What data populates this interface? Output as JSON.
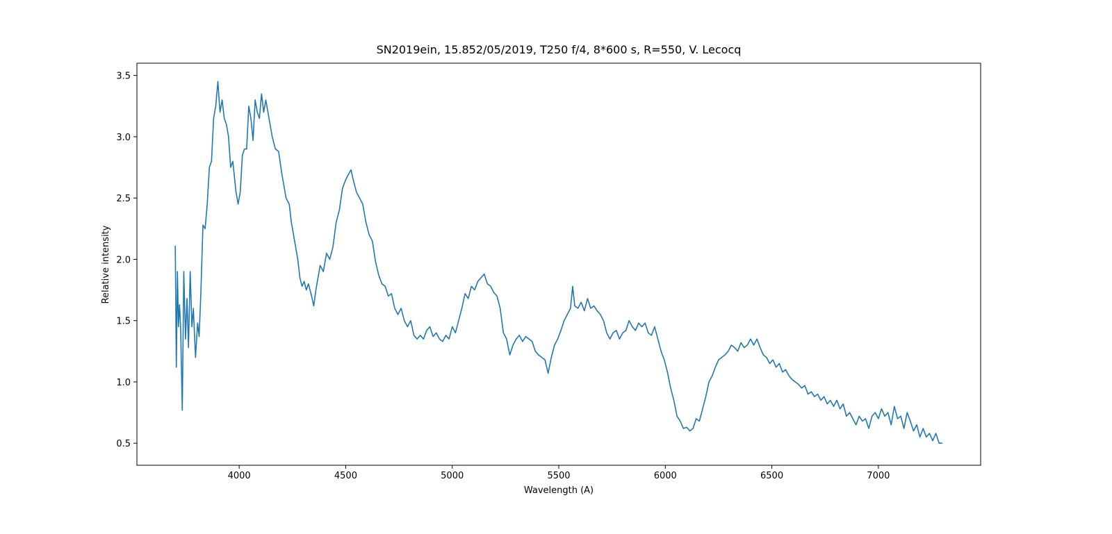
{
  "chart_data": {
    "type": "line",
    "title": "SN2019ein, 15.852/05/2019, T250 f/4, 8*600 s, R=550, V. Lecocq",
    "x_label": "Wavelength (A)",
    "y_label": "Relative intensity",
    "color": "#1f77b4",
    "xlim": [
      3520,
      7480
    ],
    "ylim": [
      0.32,
      3.6
    ],
    "xticks": [
      4000,
      4500,
      5000,
      5500,
      6000,
      6500,
      7000
    ],
    "yticks": [
      0.5,
      {
        "value": 1,
        "label": "1.0"
      },
      1.5,
      {
        "value": 2,
        "label": "2.0"
      },
      2.5,
      {
        "value": 3,
        "label": "3.0"
      },
      3.5
    ],
    "grid": false,
    "x": [
      3700,
      3705,
      3710,
      3715,
      3720,
      3725,
      3733,
      3740,
      3748,
      3755,
      3762,
      3770,
      3778,
      3785,
      3795,
      3805,
      3812,
      3820,
      3830,
      3840,
      3850,
      3860,
      3870,
      3880,
      3890,
      3900,
      3910,
      3920,
      3930,
      3940,
      3950,
      3960,
      3970,
      3985,
      3995,
      4005,
      4015,
      4025,
      4035,
      4045,
      4055,
      4065,
      4075,
      4085,
      4095,
      4105,
      4115,
      4125,
      4135,
      4145,
      4155,
      4170,
      4185,
      4200,
      4210,
      4220,
      4235,
      4245,
      4255,
      4265,
      4275,
      4285,
      4295,
      4305,
      4315,
      4325,
      4340,
      4350,
      4360,
      4370,
      4380,
      4395,
      4410,
      4425,
      4440,
      4455,
      4470,
      4485,
      4500,
      4515,
      4525,
      4535,
      4550,
      4565,
      4580,
      4595,
      4610,
      4625,
      4640,
      4655,
      4670,
      4685,
      4700,
      4715,
      4730,
      4745,
      4760,
      4775,
      4790,
      4805,
      4820,
      4835,
      4850,
      4865,
      4880,
      4895,
      4910,
      4925,
      4940,
      4955,
      4970,
      4985,
      5000,
      5015,
      5030,
      5045,
      5060,
      5075,
      5090,
      5105,
      5120,
      5135,
      5150,
      5165,
      5180,
      5195,
      5210,
      5225,
      5240,
      5255,
      5270,
      5285,
      5300,
      5315,
      5330,
      5345,
      5360,
      5375,
      5390,
      5405,
      5420,
      5435,
      5450,
      5465,
      5480,
      5495,
      5510,
      5525,
      5540,
      5555,
      5565,
      5575,
      5590,
      5605,
      5620,
      5635,
      5650,
      5665,
      5680,
      5695,
      5710,
      5725,
      5740,
      5755,
      5770,
      5785,
      5800,
      5815,
      5830,
      5845,
      5860,
      5875,
      5890,
      5905,
      5920,
      5935,
      5950,
      5965,
      5980,
      5995,
      6010,
      6025,
      6040,
      6055,
      6070,
      6085,
      6100,
      6115,
      6130,
      6145,
      6160,
      6175,
      6190,
      6205,
      6220,
      6235,
      6250,
      6265,
      6280,
      6295,
      6310,
      6325,
      6340,
      6355,
      6370,
      6385,
      6400,
      6415,
      6430,
      6445,
      6460,
      6475,
      6490,
      6505,
      6520,
      6535,
      6550,
      6565,
      6580,
      6595,
      6610,
      6625,
      6640,
      6655,
      6670,
      6685,
      6700,
      6715,
      6730,
      6745,
      6760,
      6775,
      6790,
      6805,
      6820,
      6835,
      6850,
      6865,
      6880,
      6895,
      6910,
      6925,
      6940,
      6955,
      6970,
      6985,
      7000,
      7015,
      7030,
      7045,
      7060,
      7075,
      7090,
      7105,
      7120,
      7135,
      7150,
      7165,
      7180,
      7195,
      7210,
      7225,
      7240,
      7255,
      7270,
      7285,
      7300
    ],
    "values": [
      2.11,
      1.12,
      1.9,
      1.45,
      1.63,
      1.45,
      0.77,
      1.9,
      1.35,
      1.68,
      1.28,
      1.9,
      1.45,
      1.6,
      1.2,
      1.48,
      1.37,
      1.72,
      2.28,
      2.25,
      2.45,
      2.75,
      2.8,
      3.15,
      3.25,
      3.45,
      3.2,
      3.3,
      3.15,
      3.1,
      3.0,
      2.75,
      2.8,
      2.55,
      2.45,
      2.55,
      2.85,
      2.9,
      2.9,
      3.25,
      3.15,
      2.97,
      3.3,
      3.2,
      3.15,
      3.35,
      3.2,
      3.3,
      3.2,
      3.1,
      3.0,
      2.9,
      2.88,
      2.7,
      2.6,
      2.5,
      2.45,
      2.3,
      2.2,
      2.1,
      2.0,
      1.85,
      1.78,
      1.82,
      1.75,
      1.8,
      1.7,
      1.62,
      1.75,
      1.85,
      1.95,
      1.9,
      2.05,
      2.0,
      2.1,
      2.3,
      2.4,
      2.58,
      2.65,
      2.7,
      2.73,
      2.65,
      2.55,
      2.5,
      2.45,
      2.3,
      2.2,
      2.15,
      1.98,
      1.87,
      1.8,
      1.78,
      1.7,
      1.72,
      1.6,
      1.55,
      1.6,
      1.5,
      1.45,
      1.5,
      1.38,
      1.35,
      1.38,
      1.35,
      1.42,
      1.45,
      1.37,
      1.4,
      1.35,
      1.33,
      1.38,
      1.35,
      1.45,
      1.4,
      1.5,
      1.6,
      1.72,
      1.68,
      1.78,
      1.75,
      1.82,
      1.85,
      1.88,
      1.8,
      1.78,
      1.73,
      1.7,
      1.6,
      1.4,
      1.35,
      1.22,
      1.3,
      1.35,
      1.38,
      1.33,
      1.37,
      1.35,
      1.33,
      1.25,
      1.22,
      1.2,
      1.18,
      1.07,
      1.2,
      1.3,
      1.35,
      1.42,
      1.5,
      1.55,
      1.6,
      1.78,
      1.62,
      1.6,
      1.65,
      1.58,
      1.68,
      1.6,
      1.62,
      1.58,
      1.55,
      1.5,
      1.4,
      1.35,
      1.4,
      1.42,
      1.35,
      1.4,
      1.42,
      1.5,
      1.45,
      1.42,
      1.48,
      1.45,
      1.48,
      1.4,
      1.38,
      1.45,
      1.35,
      1.25,
      1.18,
      1.08,
      0.95,
      0.85,
      0.72,
      0.68,
      0.62,
      0.63,
      0.6,
      0.62,
      0.7,
      0.68,
      0.78,
      0.88,
      1.0,
      1.05,
      1.12,
      1.18,
      1.2,
      1.22,
      1.25,
      1.3,
      1.28,
      1.25,
      1.32,
      1.28,
      1.3,
      1.35,
      1.3,
      1.35,
      1.28,
      1.22,
      1.2,
      1.15,
      1.18,
      1.12,
      1.15,
      1.08,
      1.1,
      1.05,
      1.02,
      1.0,
      0.98,
      0.95,
      0.97,
      0.9,
      0.92,
      0.88,
      0.9,
      0.85,
      0.88,
      0.82,
      0.85,
      0.8,
      0.85,
      0.78,
      0.82,
      0.72,
      0.75,
      0.7,
      0.65,
      0.72,
      0.68,
      0.7,
      0.62,
      0.72,
      0.75,
      0.7,
      0.78,
      0.72,
      0.75,
      0.65,
      0.8,
      0.7,
      0.72,
      0.62,
      0.75,
      0.68,
      0.6,
      0.65,
      0.55,
      0.62,
      0.55,
      0.58,
      0.52,
      0.58,
      0.5,
      0.5
    ]
  }
}
